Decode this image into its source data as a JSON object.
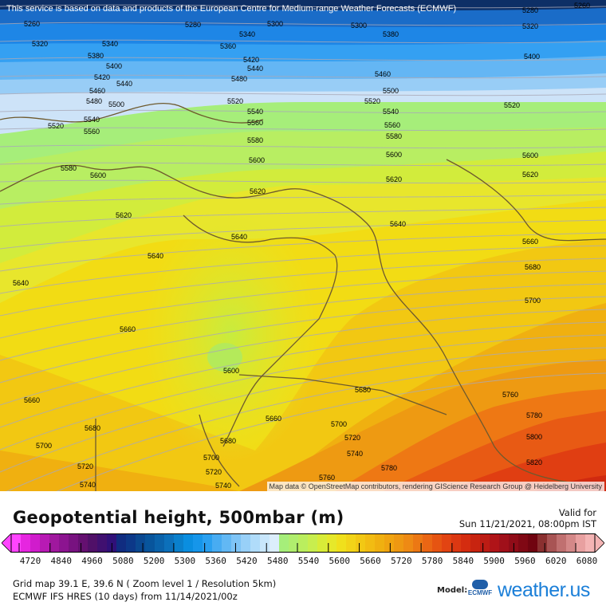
{
  "notice": "This service is based on data and products of the European Centre for Medium-range Weather Forecasts (ECMWF)",
  "attribution": "Map data © OpenStreetMap contributors, rendering GIScience Research Group @ Heidelberg University",
  "title": "Geopotential height, 500mbar (m)",
  "valid_label": "Valid for",
  "valid_time": "Sun 11/21/2021, 08:00pm IST",
  "legend": {
    "ticks": [
      "4720",
      "4840",
      "4960",
      "5080",
      "5200",
      "5300",
      "5360",
      "5420",
      "5480",
      "5540",
      "5600",
      "5660",
      "5720",
      "5780",
      "5840",
      "5900",
      "5960",
      "6020",
      "6080"
    ],
    "colors": [
      "#ff44ff",
      "#e626e0",
      "#d01ccc",
      "#b81ab4",
      "#a0189e",
      "#8c1490",
      "#781280",
      "#641070",
      "#501068",
      "#401070",
      "#301078",
      "#102c80",
      "#0c3888",
      "#0a4890",
      "#08559c",
      "#0a62aa",
      "#0c70ba",
      "#0a80cc",
      "#0a8ee0",
      "#1696ea",
      "#2aa0f0",
      "#48acf2",
      "#62b8f4",
      "#7ec4f6",
      "#98d0f8",
      "#b0dcfa",
      "#c8e6fb",
      "#dceefc",
      "#a6ee7a",
      "#b0ee6e",
      "#baee5e",
      "#c8ee4e",
      "#d8ec38",
      "#e6e82a",
      "#f0e01c",
      "#f2d418",
      "#f2c814",
      "#f2bc12",
      "#f0b010",
      "#f0a410",
      "#ee9812",
      "#ee8a14",
      "#ec7814",
      "#ea6614",
      "#e65412",
      "#e24412",
      "#dc3812",
      "#d42c10",
      "#c82410",
      "#bc1c14",
      "#b01418",
      "#a0101a",
      "#900c18",
      "#800814",
      "#700410",
      "#8a3030",
      "#a85454",
      "#c07070",
      "#d48888",
      "#e8a0a0",
      "#f4b4b4"
    ]
  },
  "grid_info": "Grid map 39.1 E, 39.6 N ( Zoom level 1 / Resolution 5km)",
  "model_info": "ECMWF IFS HRES (10 days) from 11/14/2021/00z",
  "model_label": "Model:",
  "model_logo_text": "ECMWF",
  "brand": "weather.us",
  "contour_labels": [
    "5260",
    "5260",
    "5280",
    "5280",
    "5300",
    "5300",
    "5320",
    "5320",
    "5340",
    "5340",
    "5360",
    "5380",
    "5380",
    "5400",
    "5400",
    "5420",
    "5420",
    "5440",
    "5440",
    "5460",
    "5460",
    "5480",
    "5480",
    "5500",
    "5500",
    "5520",
    "5520",
    "5520",
    "5520",
    "5540",
    "5540",
    "5540",
    "5560",
    "5560",
    "5560",
    "5580",
    "5580",
    "5580",
    "5600",
    "5600",
    "5600",
    "5600",
    "5620",
    "5620",
    "5620",
    "5620",
    "5640",
    "5640",
    "5640",
    "5640",
    "5660",
    "5660",
    "5660",
    "5660",
    "5680",
    "5680",
    "5680",
    "5680",
    "5700",
    "5700",
    "5700",
    "5700",
    "5720",
    "5720",
    "5720",
    "5740",
    "5740",
    "5740",
    "5760",
    "5760",
    "5780",
    "5780",
    "5800",
    "5820",
    "5600"
  ]
}
